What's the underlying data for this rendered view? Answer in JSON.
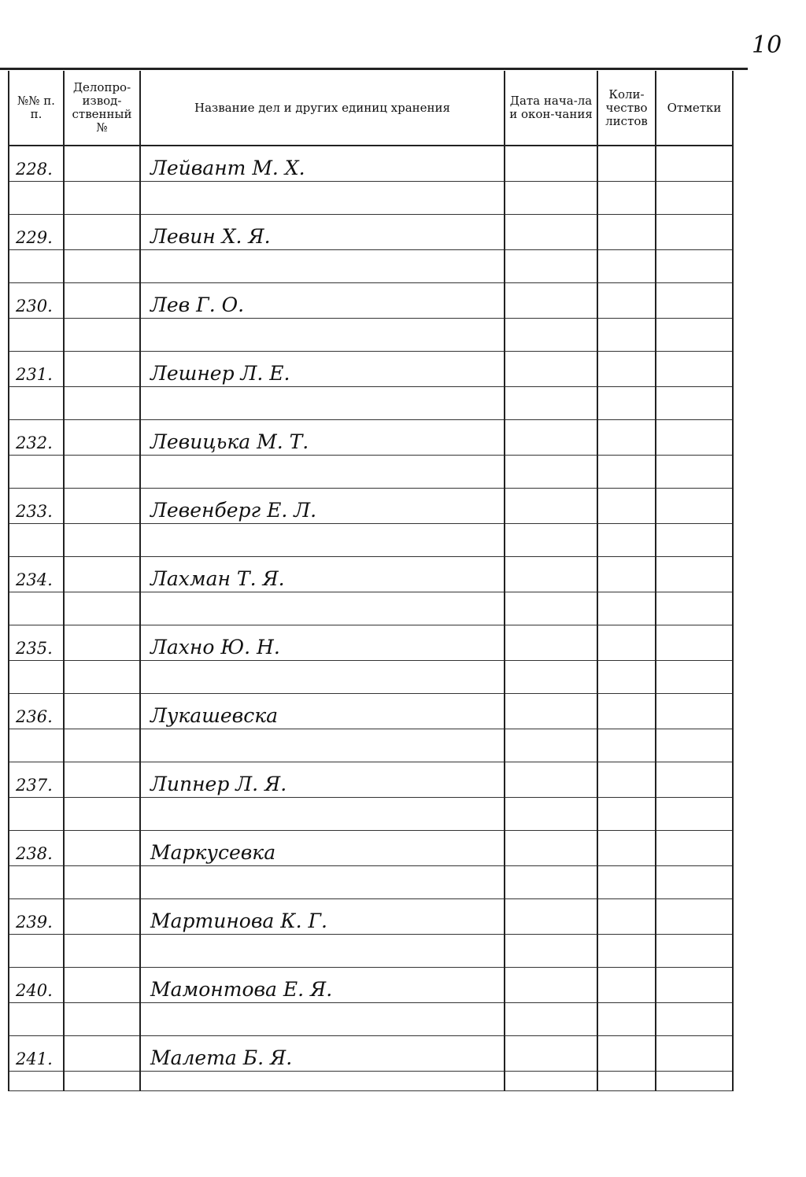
{
  "page_number": "10",
  "header": {
    "col_num": "№№ п. п.",
    "col_office_num": "Делопро-извод-ственный №",
    "col_title": "Название дел и других единиц хранения",
    "col_dates": "Дата нача-ла и окон-чания",
    "col_sheets": "Коли-чество листов",
    "col_notes": "Отметки"
  },
  "rows": [
    {
      "num": "228.",
      "title": "Лейвант М. Х."
    },
    {
      "num": "229.",
      "title": "Левин Х. Я."
    },
    {
      "num": "230.",
      "title": "Лев Г. О."
    },
    {
      "num": "231.",
      "title": "Лешнер Л. Е."
    },
    {
      "num": "232.",
      "title": "Левицька М. Т."
    },
    {
      "num": "233.",
      "title": "Левенберг Е. Л."
    },
    {
      "num": "234.",
      "title": "Лахман Т. Я."
    },
    {
      "num": "235.",
      "title": "Лахно Ю. Н."
    },
    {
      "num": "236.",
      "title": "Лукашевска"
    },
    {
      "num": "237.",
      "title": "Липнер Л. Я."
    },
    {
      "num": "238.",
      "title": "Маркусевка"
    },
    {
      "num": "239.",
      "title": "Мартинова К. Г."
    },
    {
      "num": "240.",
      "title": "Мамонтова Е. Я."
    },
    {
      "num": "241.",
      "title": "Малета Б. Я."
    }
  ]
}
